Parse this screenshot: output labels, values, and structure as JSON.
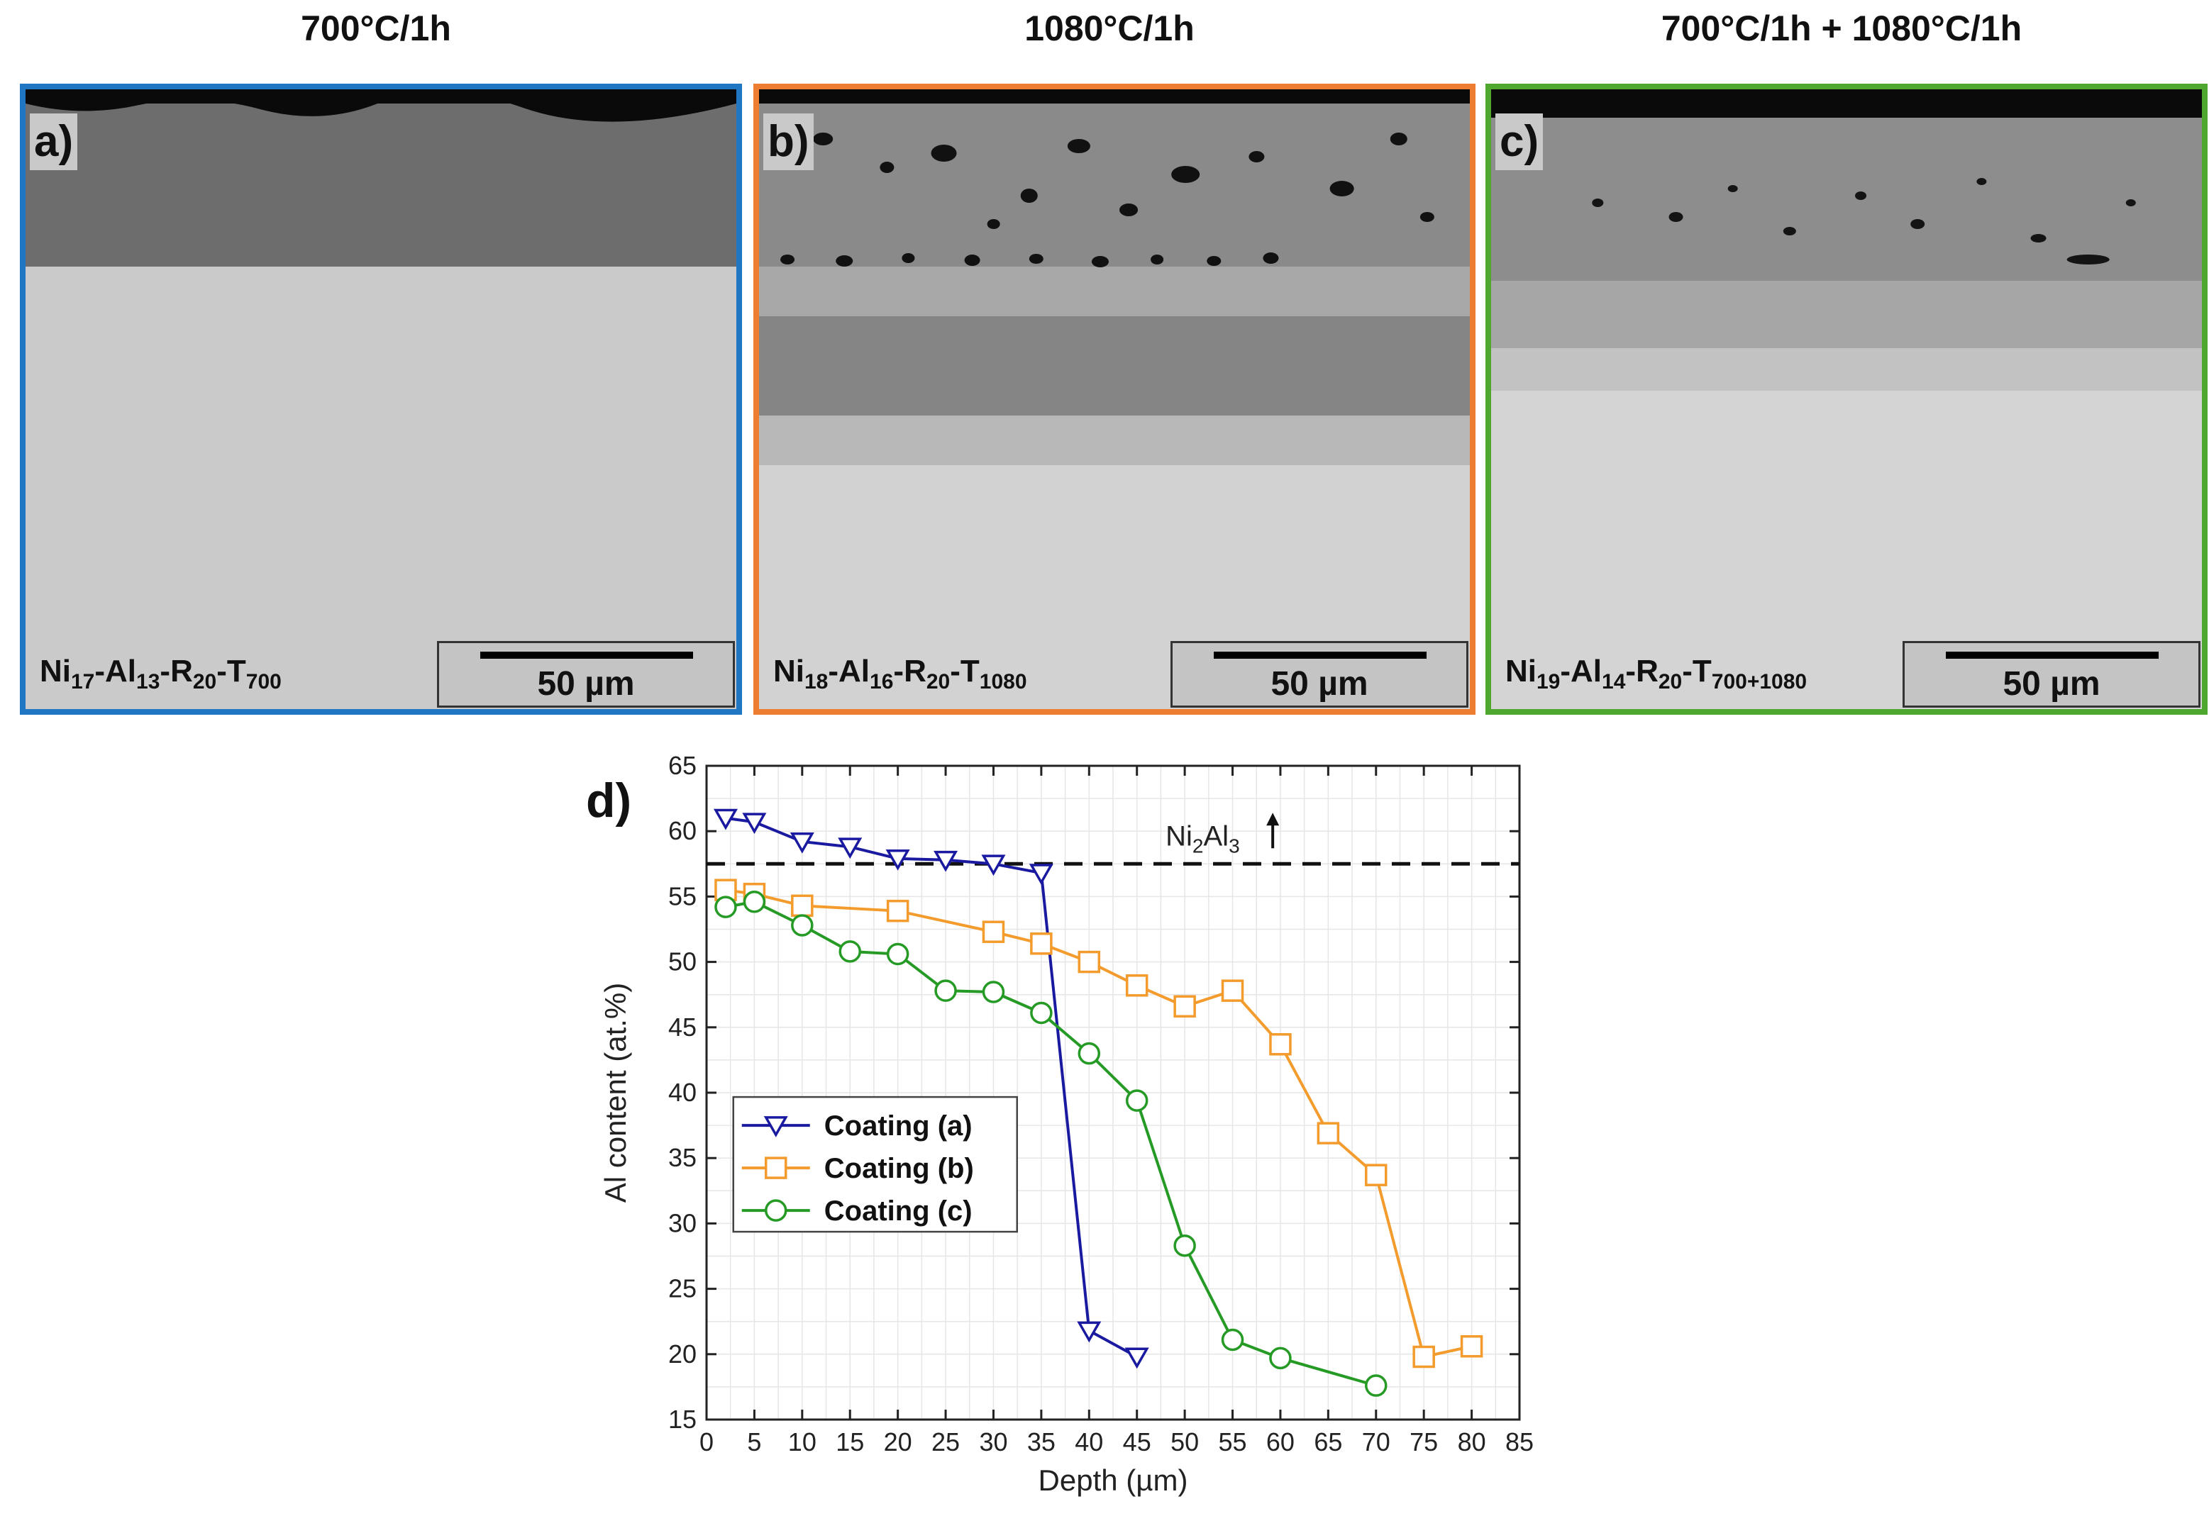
{
  "columns": [
    {
      "title": "700°C/1h",
      "letter": "a)",
      "sample": {
        "base": "Ni",
        "ni": "17",
        "al": "13",
        "r": "20",
        "t": "700"
      },
      "scale": "50 µm",
      "color": "#1f77c4"
    },
    {
      "title": "1080°C/1h",
      "letter": "b)",
      "sample": {
        "base": "Ni",
        "ni": "18",
        "al": "16",
        "r": "20",
        "t": "1080"
      },
      "scale": "50 µm",
      "color": "#ed7d31"
    },
    {
      "title": "700°C/1h + 1080°C/1h",
      "letter": "c)",
      "sample": {
        "base": "Ni",
        "ni": "19",
        "al": "14",
        "r": "20",
        "t": "700+1080"
      },
      "scale": "50 µm",
      "color": "#4ea72e"
    }
  ],
  "sample_text": {
    "al": "Al",
    "r": "R",
    "t": "T",
    "dash": "-"
  },
  "chart_letter": "d)",
  "chart_data": {
    "type": "line",
    "xlabel": "Depth (µm)",
    "ylabel": "Al content (at.%)",
    "xlim": [
      0,
      85
    ],
    "ylim": [
      15,
      65
    ],
    "xticks": [
      0,
      5,
      10,
      15,
      20,
      25,
      30,
      35,
      40,
      45,
      50,
      55,
      60,
      65,
      70,
      75,
      80,
      85
    ],
    "yticks": [
      15,
      20,
      25,
      30,
      35,
      40,
      45,
      50,
      55,
      60,
      65
    ],
    "grid": true,
    "legend_position": "lower-left",
    "reference_line": {
      "y": 57.5,
      "style": "dashed",
      "label_main": "Ni",
      "label_sub1": "2",
      "label_mid": "Al",
      "label_sub2": "3"
    },
    "series": [
      {
        "name": "Coating (a)",
        "marker": "triangle-down",
        "color": "#1a1aa0",
        "x": [
          2,
          5,
          10,
          15,
          20,
          25,
          30,
          35,
          40,
          45
        ],
        "y": [
          61.0,
          60.7,
          59.2,
          58.8,
          57.9,
          57.8,
          57.5,
          56.8,
          21.8,
          19.8
        ]
      },
      {
        "name": "Coating (b)",
        "marker": "square",
        "color": "#f39b2c",
        "x": [
          2,
          5,
          10,
          20,
          30,
          35,
          40,
          45,
          50,
          55,
          60,
          65,
          70,
          75,
          80
        ],
        "y": [
          55.5,
          55.2,
          54.3,
          53.9,
          52.3,
          51.4,
          50.0,
          48.2,
          46.6,
          47.8,
          43.7,
          36.9,
          33.7,
          19.8,
          20.6
        ]
      },
      {
        "name": "Coating (c)",
        "marker": "circle",
        "color": "#259a25",
        "x": [
          2,
          5,
          10,
          15,
          20,
          25,
          30,
          35,
          40,
          45,
          50,
          55,
          60,
          70
        ],
        "y": [
          54.2,
          54.6,
          52.8,
          50.8,
          50.6,
          47.8,
          47.7,
          46.1,
          43.0,
          39.4,
          28.3,
          21.1,
          19.7,
          17.6
        ]
      }
    ]
  }
}
